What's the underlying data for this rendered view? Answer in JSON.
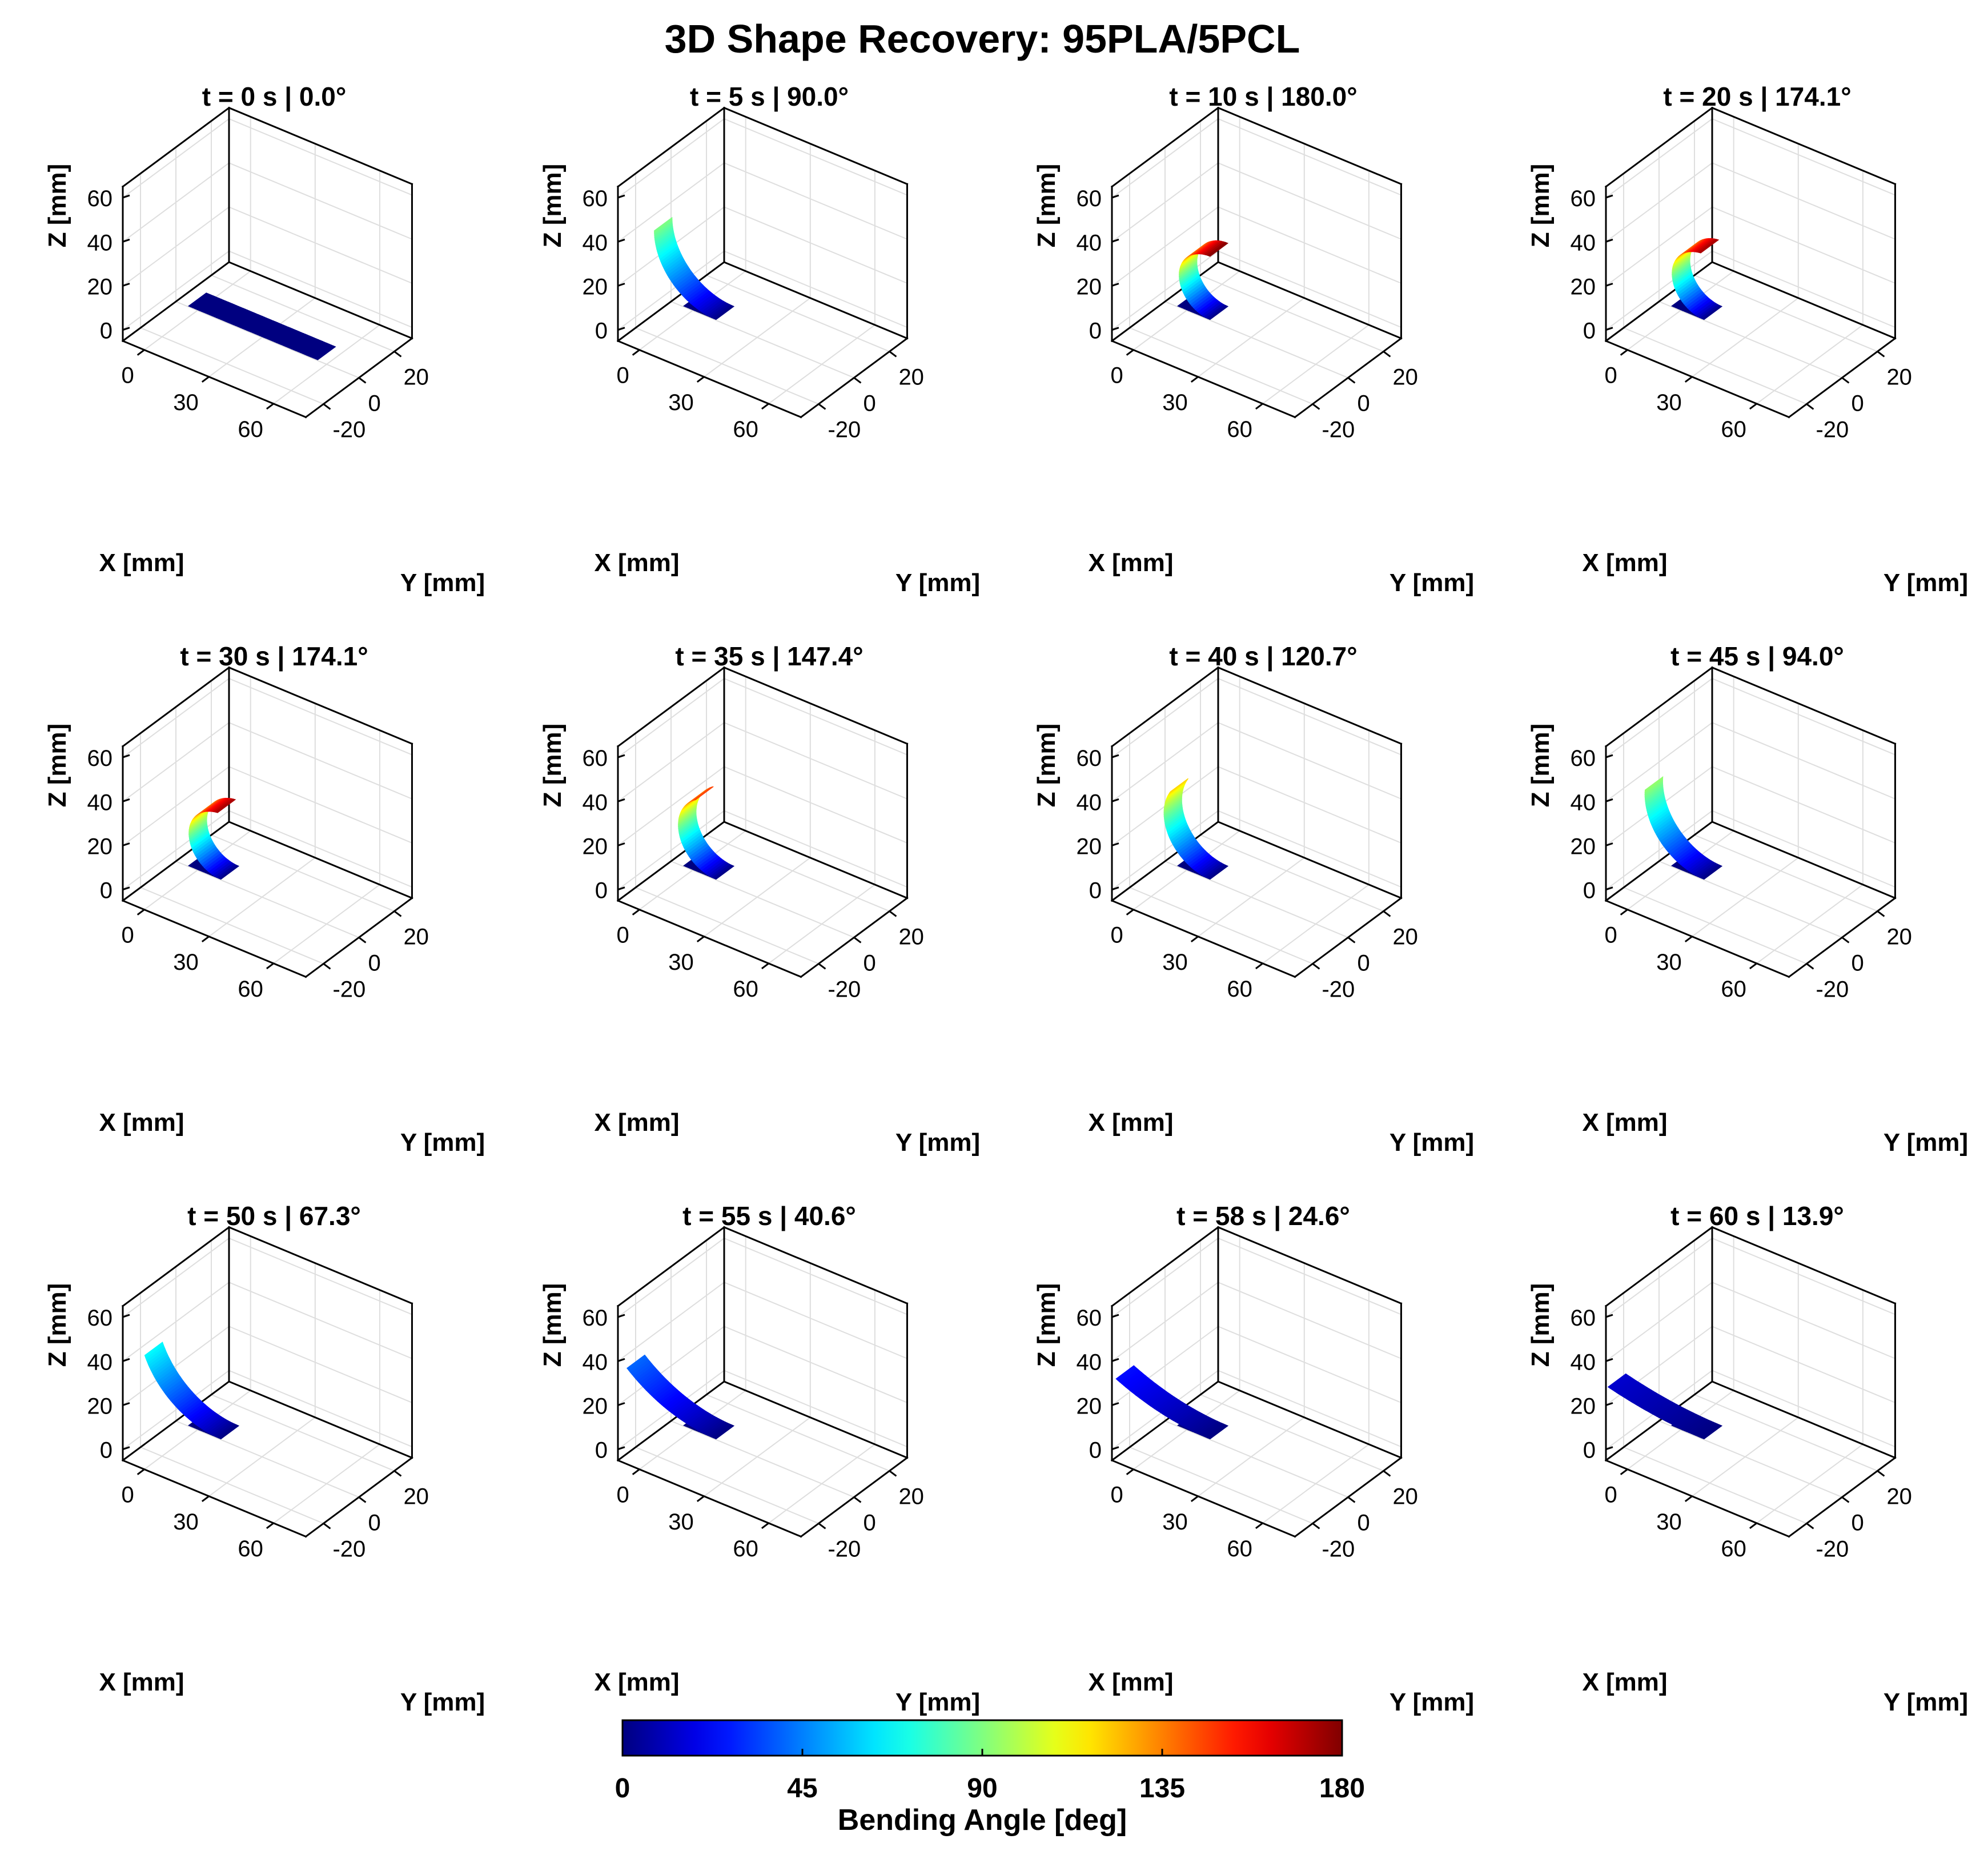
{
  "figure": {
    "title": "3D Shape Recovery: 95PLA/5PCL"
  },
  "chart_data": {
    "type": "surface3d",
    "title": "3D Shape Recovery: 95PLA/5PCL",
    "subplot_title_template": "t = {t} s | {angle}°",
    "axes": {
      "xlabel": "X [mm]",
      "ylabel": "Y [mm]",
      "zlabel": "Z [mm]",
      "xticks": [
        "0",
        "30",
        "60"
      ],
      "yticks": [
        "-20",
        "0",
        "20"
      ],
      "zticks": [
        "0",
        "20",
        "40",
        "60"
      ],
      "xlim": [
        -10,
        75
      ],
      "ylim": [
        -30,
        30
      ],
      "zlim": [
        -5,
        65
      ],
      "grid": true
    },
    "strip": {
      "length_mm": 60,
      "width_mm": 10,
      "fixed_length_mm": 15
    },
    "panels": [
      {
        "t": 0,
        "angle": 0.0,
        "label": "t = 0 s | 0.0°"
      },
      {
        "t": 5,
        "angle": 90.0,
        "label": "t = 5 s | 90.0°"
      },
      {
        "t": 10,
        "angle": 180.0,
        "label": "t = 10 s | 180.0°"
      },
      {
        "t": 20,
        "angle": 174.1,
        "label": "t = 20 s | 174.1°"
      },
      {
        "t": 30,
        "angle": 174.1,
        "label": "t = 30 s | 174.1°"
      },
      {
        "t": 35,
        "angle": 147.4,
        "label": "t = 35 s | 147.4°"
      },
      {
        "t": 40,
        "angle": 120.7,
        "label": "t = 40 s | 120.7°"
      },
      {
        "t": 45,
        "angle": 94.0,
        "label": "t = 45 s | 94.0°"
      },
      {
        "t": 50,
        "angle": 67.3,
        "label": "t = 50 s | 67.3°"
      },
      {
        "t": 55,
        "angle": 40.6,
        "label": "t = 55 s | 40.6°"
      },
      {
        "t": 58,
        "angle": 24.6,
        "label": "t = 58 s | 24.6°"
      },
      {
        "t": 60,
        "angle": 13.9,
        "label": "t = 60 s | 13.9°"
      }
    ],
    "colorbar": {
      "label": "Bending Angle [deg]",
      "ticks": [
        "0",
        "45",
        "90",
        "135",
        "180"
      ],
      "range": [
        0,
        180
      ],
      "colormap": "jet"
    }
  }
}
